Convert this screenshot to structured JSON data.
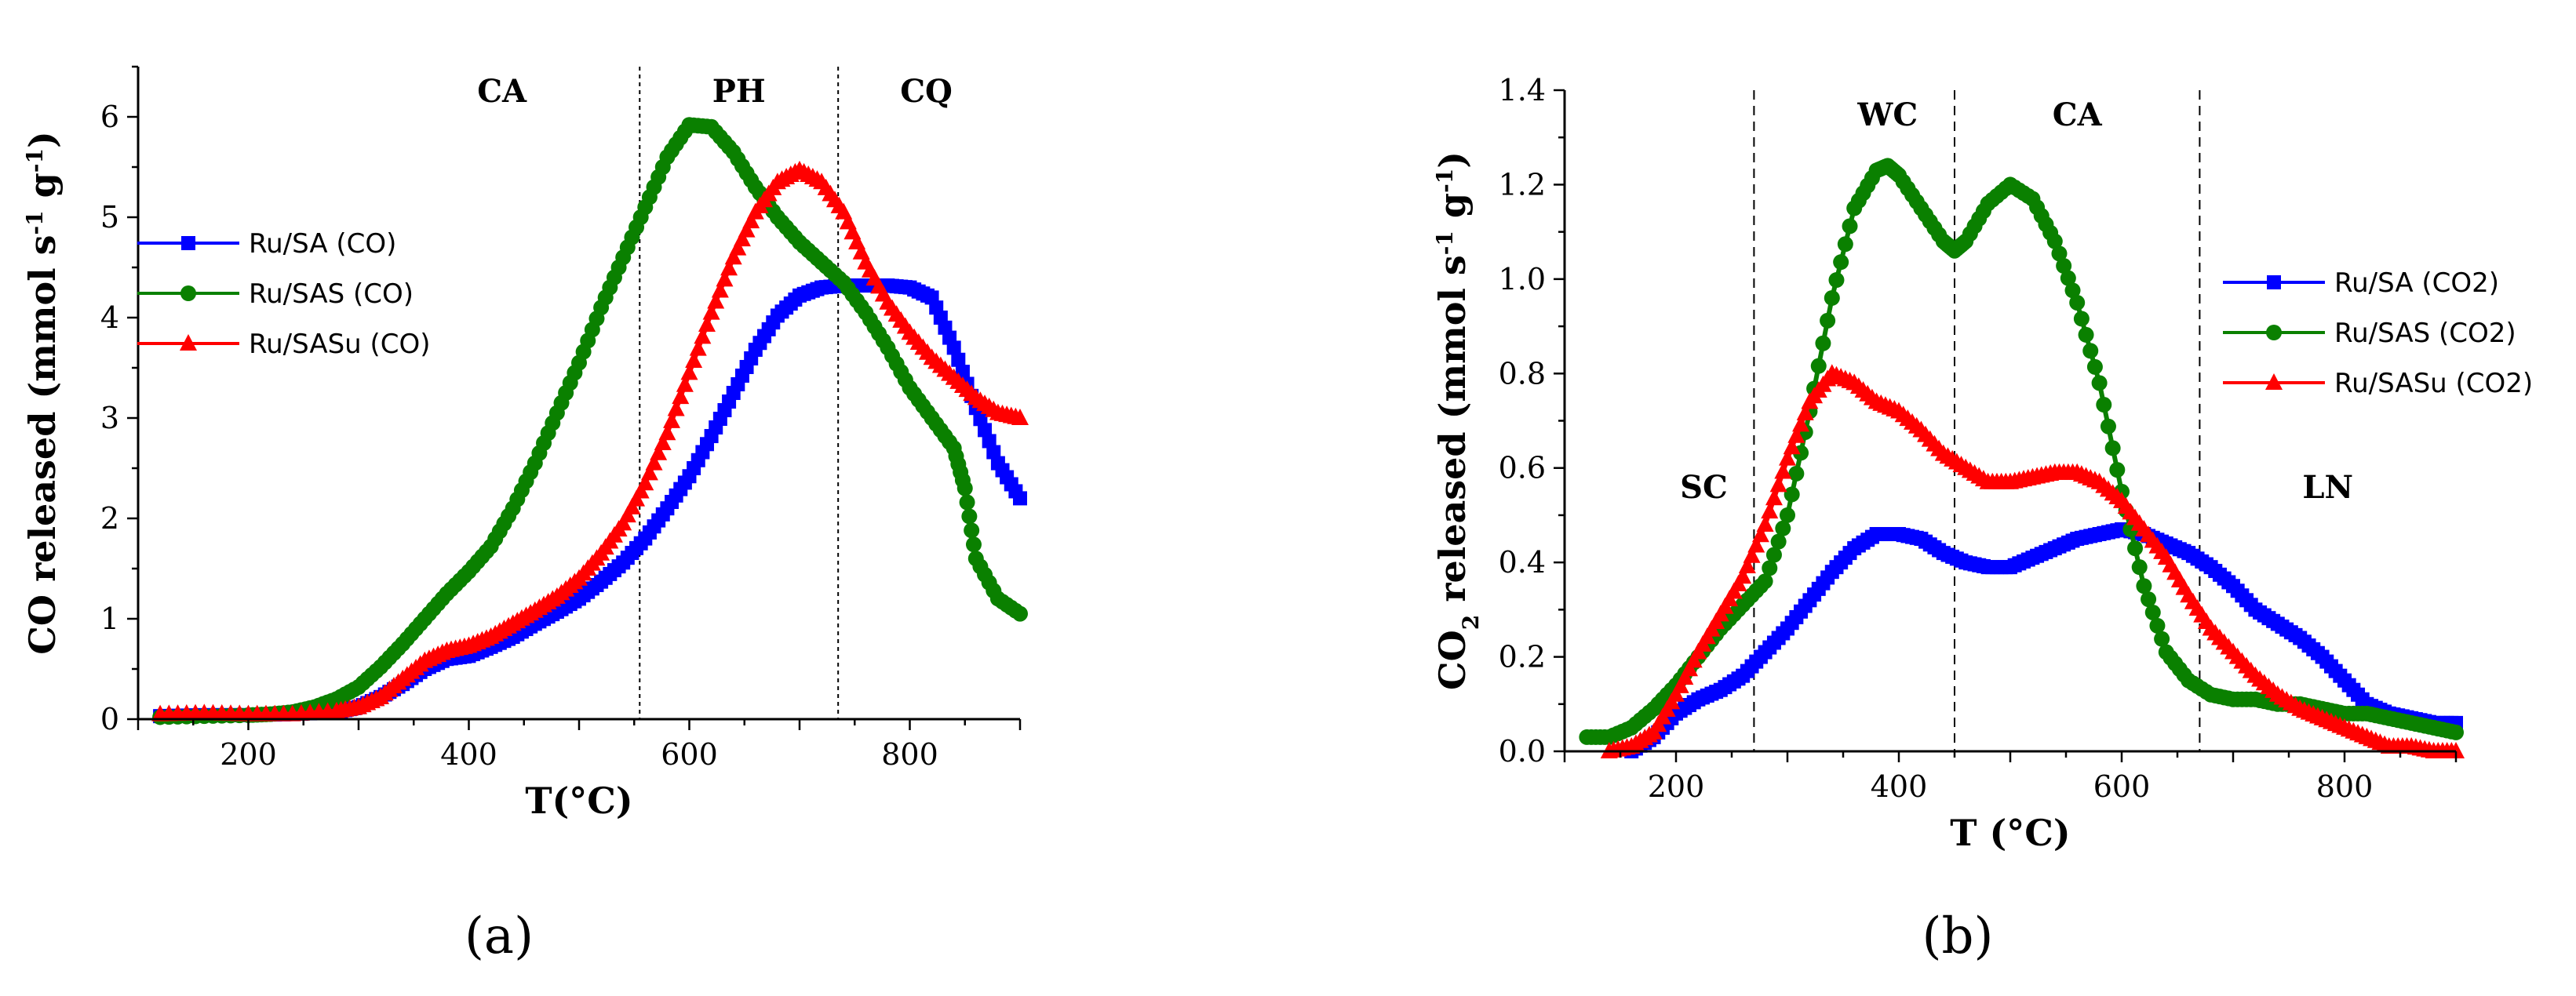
{
  "colors": {
    "ru_sa": "#0000ff",
    "ru_sas": "#0a8000",
    "ru_sasu": "#ff0000",
    "axis": "#000000"
  },
  "chart_data": [
    {
      "type": "scatter",
      "panel_label": "(a)",
      "xlabel": "T(°C)",
      "ylabel": "CO released (mmol s⁻¹ g⁻¹)",
      "xlim": [
        100,
        900
      ],
      "ylim": [
        0,
        6.5
      ],
      "xticks": [
        200,
        400,
        600,
        800
      ],
      "yticks": [
        0,
        1,
        2,
        3,
        4,
        5,
        6
      ],
      "grid": false,
      "legend": "left",
      "regions": [
        {
          "label": "CA",
          "x": 430
        },
        {
          "label": "PH",
          "x": 645
        },
        {
          "label": "CQ",
          "x": 815
        }
      ],
      "dividers": [
        555,
        735
      ],
      "series": [
        {
          "name": "Ru/SA (CO)",
          "marker": "square",
          "color": "#0000ff",
          "x": [
            120,
            160,
            200,
            240,
            280,
            300,
            320,
            340,
            360,
            380,
            400,
            420,
            440,
            460,
            480,
            500,
            520,
            540,
            560,
            580,
            600,
            620,
            640,
            660,
            680,
            700,
            720,
            740,
            760,
            780,
            800,
            820,
            840,
            860,
            880,
            900
          ],
          "y": [
            0.03,
            0.04,
            0.04,
            0.05,
            0.07,
            0.12,
            0.22,
            0.35,
            0.5,
            0.6,
            0.63,
            0.72,
            0.82,
            0.95,
            1.07,
            1.2,
            1.37,
            1.56,
            1.8,
            2.1,
            2.42,
            2.82,
            3.25,
            3.68,
            4.02,
            4.22,
            4.3,
            4.32,
            4.32,
            4.32,
            4.3,
            4.2,
            3.7,
            3.1,
            2.55,
            2.2
          ]
        },
        {
          "name": "Ru/SAS (CO)",
          "marker": "circle",
          "color": "#0a8000",
          "x": [
            120,
            160,
            200,
            220,
            240,
            260,
            280,
            300,
            320,
            340,
            360,
            380,
            400,
            420,
            440,
            460,
            480,
            500,
            520,
            540,
            560,
            580,
            600,
            620,
            640,
            660,
            680,
            700,
            720,
            740,
            760,
            780,
            800,
            820,
            840,
            850,
            860,
            880,
            900
          ],
          "y": [
            0.02,
            0.03,
            0.04,
            0.05,
            0.07,
            0.12,
            0.2,
            0.32,
            0.52,
            0.75,
            1.0,
            1.25,
            1.47,
            1.72,
            2.1,
            2.55,
            3.05,
            3.55,
            4.1,
            4.6,
            5.1,
            5.6,
            5.92,
            5.9,
            5.65,
            5.3,
            5.0,
            4.75,
            4.55,
            4.35,
            4.05,
            3.7,
            3.3,
            3.0,
            2.7,
            2.3,
            1.6,
            1.2,
            1.05
          ]
        },
        {
          "name": "Ru/SASu (CO)",
          "marker": "triangle",
          "color": "#ff0000",
          "x": [
            120,
            160,
            200,
            240,
            280,
            300,
            320,
            340,
            360,
            380,
            400,
            420,
            440,
            460,
            480,
            500,
            520,
            540,
            560,
            580,
            600,
            620,
            640,
            660,
            680,
            700,
            720,
            740,
            760,
            780,
            800,
            820,
            840,
            860,
            880,
            900
          ],
          "y": [
            0.05,
            0.06,
            0.05,
            0.05,
            0.08,
            0.12,
            0.22,
            0.4,
            0.58,
            0.68,
            0.73,
            0.82,
            0.95,
            1.08,
            1.22,
            1.4,
            1.65,
            1.95,
            2.35,
            2.85,
            3.45,
            4.05,
            4.6,
            5.05,
            5.35,
            5.47,
            5.35,
            5.05,
            4.55,
            4.15,
            3.85,
            3.6,
            3.4,
            3.2,
            3.05,
            3.0
          ]
        }
      ]
    },
    {
      "type": "scatter",
      "panel_label": "(b)",
      "xlabel": "T (°C)",
      "ylabel": "CO₂ released (mmol s⁻¹ g⁻¹)",
      "xlim": [
        100,
        900
      ],
      "ylim": [
        0,
        1.4
      ],
      "xticks": [
        200,
        400,
        600,
        800
      ],
      "yticks": [
        0.0,
        0.2,
        0.4,
        0.6,
        0.8,
        1.0,
        1.2,
        1.4
      ],
      "grid": false,
      "legend": "right",
      "regions": [
        {
          "label": "SC",
          "x": 225
        },
        {
          "label": "WC",
          "x": 390
        },
        {
          "label": "CA",
          "x": 560
        },
        {
          "label": "LN",
          "x": 785
        }
      ],
      "dividers": [
        270,
        450,
        670
      ],
      "series": [
        {
          "name": "Ru/SA (CO2)",
          "marker": "square",
          "color": "#0000ff",
          "x": [
            160,
            180,
            200,
            220,
            240,
            260,
            280,
            300,
            320,
            340,
            360,
            380,
            400,
            420,
            440,
            460,
            480,
            500,
            520,
            540,
            560,
            580,
            600,
            620,
            640,
            660,
            680,
            700,
            720,
            740,
            760,
            780,
            800,
            820,
            840,
            860,
            880,
            900
          ],
          "y": [
            0.0,
            0.03,
            0.08,
            0.11,
            0.13,
            0.16,
            0.21,
            0.26,
            0.32,
            0.38,
            0.43,
            0.46,
            0.46,
            0.45,
            0.42,
            0.4,
            0.39,
            0.39,
            0.41,
            0.43,
            0.45,
            0.46,
            0.47,
            0.46,
            0.44,
            0.42,
            0.39,
            0.35,
            0.3,
            0.27,
            0.24,
            0.2,
            0.15,
            0.1,
            0.08,
            0.07,
            0.06,
            0.06
          ]
        },
        {
          "name": "Ru/SAS (CO2)",
          "marker": "circle",
          "color": "#0a8000",
          "x": [
            120,
            140,
            160,
            180,
            200,
            220,
            240,
            260,
            280,
            300,
            320,
            340,
            360,
            380,
            390,
            400,
            420,
            440,
            450,
            460,
            480,
            500,
            520,
            540,
            560,
            580,
            600,
            620,
            640,
            660,
            680,
            700,
            720,
            740,
            760,
            780,
            800,
            820,
            840,
            860,
            880,
            900
          ],
          "y": [
            0.03,
            0.03,
            0.05,
            0.09,
            0.14,
            0.2,
            0.26,
            0.31,
            0.36,
            0.5,
            0.72,
            0.96,
            1.15,
            1.23,
            1.24,
            1.22,
            1.15,
            1.08,
            1.06,
            1.08,
            1.16,
            1.2,
            1.17,
            1.08,
            0.95,
            0.78,
            0.55,
            0.35,
            0.21,
            0.15,
            0.12,
            0.11,
            0.11,
            0.1,
            0.1,
            0.09,
            0.08,
            0.08,
            0.07,
            0.06,
            0.05,
            0.04
          ]
        },
        {
          "name": "Ru/SASu (CO2)",
          "marker": "triangle",
          "color": "#ff0000",
          "x": [
            140,
            160,
            180,
            200,
            220,
            240,
            260,
            280,
            300,
            320,
            340,
            360,
            380,
            400,
            420,
            440,
            460,
            480,
            500,
            520,
            540,
            560,
            580,
            600,
            620,
            640,
            660,
            680,
            700,
            720,
            740,
            760,
            780,
            800,
            820,
            840,
            860,
            880,
            900
          ],
          "y": [
            0.0,
            0.01,
            0.04,
            0.12,
            0.21,
            0.29,
            0.37,
            0.48,
            0.62,
            0.74,
            0.8,
            0.78,
            0.74,
            0.72,
            0.68,
            0.63,
            0.6,
            0.57,
            0.57,
            0.58,
            0.59,
            0.59,
            0.57,
            0.53,
            0.47,
            0.41,
            0.33,
            0.26,
            0.21,
            0.16,
            0.12,
            0.09,
            0.07,
            0.05,
            0.03,
            0.01,
            0.01,
            0.0,
            0.0
          ]
        }
      ]
    }
  ]
}
